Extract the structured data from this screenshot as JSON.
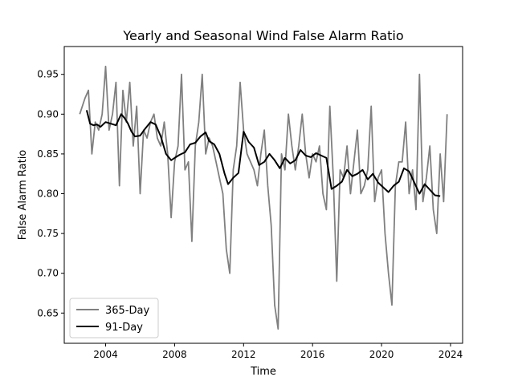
{
  "chart_data": {
    "type": "line",
    "title": "Yearly and Seasonal Wind False Alarm Ratio",
    "xlabel": "Time",
    "ylabel": "False Alarm Ratio",
    "xlim": [
      2001.6,
      2024.7
    ],
    "ylim": [
      0.612,
      0.985
    ],
    "x_ticks": [
      2004,
      2008,
      2012,
      2016,
      2020,
      2024
    ],
    "x_tick_labels": [
      "2004",
      "2008",
      "2012",
      "2016",
      "2020",
      "2024"
    ],
    "y_ticks": [
      0.65,
      0.7,
      0.75,
      0.8,
      0.85,
      0.9,
      0.95
    ],
    "y_tick_labels": [
      "0.65",
      "0.70",
      "0.75",
      "0.80",
      "0.85",
      "0.90",
      "0.95"
    ],
    "grid": false,
    "legend_position": "lower-left",
    "series": [
      {
        "name": "365-Day",
        "color": "#808080",
        "x": [
          2002.5,
          2002.8,
          2003.0,
          2003.2,
          2003.4,
          2003.6,
          2003.8,
          2004.0,
          2004.2,
          2004.4,
          2004.6,
          2004.8,
          2005.0,
          2005.2,
          2005.4,
          2005.6,
          2005.8,
          2006.0,
          2006.2,
          2006.4,
          2006.6,
          2006.8,
          2007.0,
          2007.2,
          2007.4,
          2007.6,
          2007.8,
          2008.0,
          2008.2,
          2008.4,
          2008.6,
          2008.8,
          2009.0,
          2009.2,
          2009.4,
          2009.6,
          2009.8,
          2010.0,
          2010.2,
          2010.4,
          2010.6,
          2010.8,
          2011.0,
          2011.2,
          2011.4,
          2011.6,
          2011.8,
          2012.0,
          2012.2,
          2012.4,
          2012.6,
          2012.8,
          2013.0,
          2013.2,
          2013.4,
          2013.6,
          2013.8,
          2014.0,
          2014.2,
          2014.4,
          2014.6,
          2014.8,
          2015.0,
          2015.2,
          2015.4,
          2015.6,
          2015.8,
          2016.0,
          2016.2,
          2016.4,
          2016.6,
          2016.8,
          2017.0,
          2017.2,
          2017.4,
          2017.6,
          2017.8,
          2018.0,
          2018.2,
          2018.4,
          2018.6,
          2018.8,
          2019.0,
          2019.2,
          2019.4,
          2019.6,
          2019.8,
          2020.0,
          2020.2,
          2020.4,
          2020.6,
          2020.8,
          2021.0,
          2021.2,
          2021.4,
          2021.6,
          2021.8,
          2022.0,
          2022.2,
          2022.4,
          2022.6,
          2022.8,
          2023.0,
          2023.2,
          2023.4,
          2023.6,
          2023.8
        ],
        "values": [
          0.9,
          0.92,
          0.93,
          0.85,
          0.89,
          0.88,
          0.9,
          0.96,
          0.88,
          0.9,
          0.94,
          0.81,
          0.93,
          0.89,
          0.94,
          0.86,
          0.91,
          0.8,
          0.88,
          0.87,
          0.89,
          0.9,
          0.87,
          0.86,
          0.89,
          0.85,
          0.77,
          0.84,
          0.86,
          0.95,
          0.83,
          0.84,
          0.74,
          0.86,
          0.89,
          0.95,
          0.85,
          0.87,
          0.86,
          0.84,
          0.82,
          0.8,
          0.73,
          0.7,
          0.83,
          0.86,
          0.94,
          0.88,
          0.85,
          0.84,
          0.83,
          0.81,
          0.85,
          0.88,
          0.81,
          0.76,
          0.66,
          0.63,
          0.85,
          0.83,
          0.9,
          0.86,
          0.83,
          0.86,
          0.9,
          0.85,
          0.82,
          0.85,
          0.84,
          0.86,
          0.8,
          0.78,
          0.91,
          0.82,
          0.69,
          0.83,
          0.82,
          0.86,
          0.8,
          0.84,
          0.88,
          0.8,
          0.81,
          0.83,
          0.91,
          0.79,
          0.82,
          0.83,
          0.75,
          0.7,
          0.66,
          0.81,
          0.84,
          0.84,
          0.89,
          0.8,
          0.83,
          0.78,
          0.95,
          0.79,
          0.82,
          0.86,
          0.78,
          0.75,
          0.85,
          0.79,
          0.9
        ]
      },
      {
        "name": "91-Day",
        "color": "#000000",
        "x": [
          2002.9,
          2003.1,
          2003.3,
          2003.5,
          2003.7,
          2004.0,
          2004.3,
          2004.6,
          2004.9,
          2005.1,
          2005.3,
          2005.5,
          2005.7,
          2006.0,
          2006.3,
          2006.6,
          2006.9,
          2007.2,
          2007.5,
          2007.8,
          2008.0,
          2008.3,
          2008.6,
          2008.9,
          2009.2,
          2009.5,
          2009.8,
          2010.0,
          2010.3,
          2010.6,
          2010.9,
          2011.1,
          2011.4,
          2011.7,
          2012.0,
          2012.3,
          2012.6,
          2012.9,
          2013.2,
          2013.5,
          2013.8,
          2014.1,
          2014.4,
          2014.7,
          2015.0,
          2015.3,
          2015.6,
          2015.9,
          2016.2,
          2016.5,
          2016.8,
          2017.1,
          2017.4,
          2017.7,
          2018.0,
          2018.3,
          2018.6,
          2018.9,
          2019.2,
          2019.5,
          2019.8,
          2020.1,
          2020.4,
          2020.7,
          2021.0,
          2021.3,
          2021.6,
          2021.9,
          2022.2,
          2022.5,
          2022.8,
          2023.1,
          2023.4
        ],
        "values": [
          0.905,
          0.888,
          0.886,
          0.887,
          0.884,
          0.89,
          0.888,
          0.886,
          0.9,
          0.895,
          0.888,
          0.878,
          0.872,
          0.873,
          0.882,
          0.89,
          0.887,
          0.872,
          0.85,
          0.842,
          0.845,
          0.849,
          0.852,
          0.862,
          0.864,
          0.872,
          0.877,
          0.866,
          0.862,
          0.85,
          0.825,
          0.812,
          0.82,
          0.826,
          0.878,
          0.865,
          0.858,
          0.836,
          0.84,
          0.85,
          0.842,
          0.832,
          0.845,
          0.838,
          0.842,
          0.855,
          0.848,
          0.846,
          0.851,
          0.848,
          0.845,
          0.806,
          0.81,
          0.815,
          0.83,
          0.822,
          0.825,
          0.83,
          0.818,
          0.825,
          0.814,
          0.808,
          0.802,
          0.81,
          0.815,
          0.832,
          0.828,
          0.814,
          0.8,
          0.812,
          0.805,
          0.798,
          0.797
        ]
      }
    ]
  }
}
